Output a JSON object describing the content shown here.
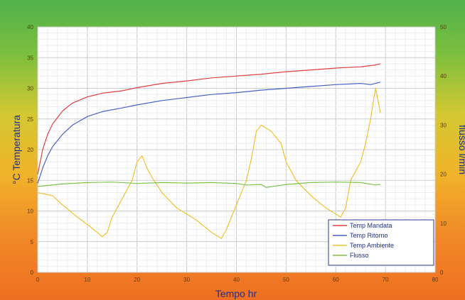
{
  "chart_data": {
    "type": "line",
    "xlabel": "Tempo hr",
    "ylabel": "°C Temperatura",
    "y2label": "flusso l/min",
    "xlim": [
      0,
      80
    ],
    "ylim": [
      0,
      40
    ],
    "y2lim": [
      0,
      50
    ],
    "xticks": [
      "0",
      "10",
      "20",
      "30",
      "40",
      "50",
      "60",
      "70",
      "80"
    ],
    "yticks": [
      "0",
      "5",
      "10",
      "15",
      "20",
      "25",
      "30",
      "35",
      "40"
    ],
    "y2ticks": [
      "0",
      "10",
      "20",
      "30",
      "40",
      "50"
    ],
    "grid": true,
    "legend_position": "bottom-right",
    "series": [
      {
        "name": "Temp Mandata",
        "axis": "left",
        "color": "#e04040",
        "x": [
          0,
          1,
          2,
          3,
          5,
          7,
          10,
          13,
          17,
          20,
          25,
          30,
          35,
          40,
          45,
          50,
          55,
          60,
          65,
          68,
          69
        ],
        "y": [
          16,
          20,
          22.5,
          24.2,
          26.3,
          27.6,
          28.6,
          29.2,
          29.6,
          30.1,
          30.8,
          31.2,
          31.7,
          32.0,
          32.3,
          32.7,
          33.0,
          33.3,
          33.5,
          33.8,
          34.0
        ]
      },
      {
        "name": "Temp Ritorno",
        "axis": "left",
        "color": "#4a5fc8",
        "x": [
          0,
          1,
          2,
          3,
          5,
          7,
          10,
          13,
          17,
          20,
          25,
          30,
          35,
          40,
          45,
          50,
          55,
          60,
          65,
          67,
          69
        ],
        "y": [
          14.5,
          17,
          19,
          20.5,
          22.5,
          24,
          25.4,
          26.2,
          26.8,
          27.3,
          28.0,
          28.5,
          29.0,
          29.3,
          29.7,
          30.0,
          30.3,
          30.6,
          30.8,
          30.6,
          31.0
        ]
      },
      {
        "name": "Temp Ambiente",
        "axis": "left",
        "color": "#f2c030",
        "x": [
          0,
          3,
          5,
          8,
          10,
          12,
          13,
          14,
          15,
          17,
          19,
          20,
          21,
          22,
          23,
          25,
          28,
          32,
          35,
          37,
          38,
          40,
          42,
          43,
          44,
          45,
          47,
          48,
          49,
          50,
          52,
          55,
          58,
          60,
          61,
          62,
          63,
          64,
          65,
          66,
          67,
          68,
          69
        ],
        "y": [
          13,
          12.5,
          11,
          9,
          7.8,
          6.5,
          5.8,
          6.5,
          9,
          12,
          15,
          18,
          19,
          17,
          15.5,
          13,
          10.5,
          8.5,
          6.5,
          5.5,
          7,
          11,
          15,
          18.5,
          23,
          24,
          23,
          22,
          21,
          18,
          15,
          12.5,
          10.5,
          9.5,
          9,
          10.5,
          15,
          16.5,
          18,
          21,
          25,
          30,
          26
        ]
      },
      {
        "name": "Flusso",
        "axis": "right",
        "color": "#7ac44a",
        "x": [
          0,
          5,
          10,
          15,
          20,
          25,
          30,
          35,
          40,
          42,
          45,
          46,
          50,
          55,
          60,
          65,
          68,
          69
        ],
        "y": [
          17.5,
          18.0,
          18.3,
          18.4,
          18.1,
          18.3,
          18.2,
          18.3,
          18.1,
          17.8,
          17.9,
          17.3,
          17.9,
          18.3,
          18.4,
          18.3,
          17.8,
          17.9
        ]
      }
    ]
  }
}
